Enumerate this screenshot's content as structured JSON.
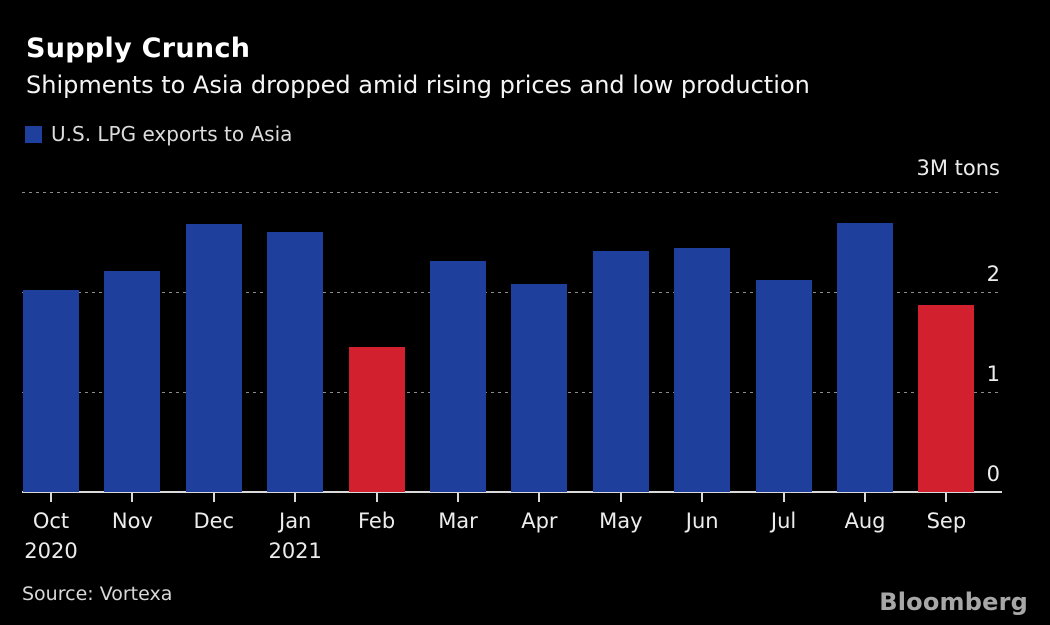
{
  "header": {
    "title": "Supply Crunch",
    "subtitle": "Shipments to Asia dropped amid rising prices and low production"
  },
  "legend": {
    "label": "U.S. LPG exports to Asia",
    "swatch_color": "#1e3f9c"
  },
  "footer": {
    "source": "Source: Vortexa",
    "brand": "Bloomberg"
  },
  "chart_data": {
    "type": "bar",
    "title": "Supply Crunch",
    "subtitle": "Shipments to Asia dropped amid rising prices and low production",
    "series_name": "U.S. LPG exports to Asia",
    "unit_label": "3M tons",
    "ylabel": "Million tons",
    "ylim": [
      0,
      3
    ],
    "yticks": [
      0,
      1,
      2
    ],
    "grid": "dashed-horizontal",
    "legend_position": "top-left",
    "categories": [
      "Oct",
      "Nov",
      "Dec",
      "Jan",
      "Feb",
      "Mar",
      "Apr",
      "May",
      "Jun",
      "Jul",
      "Aug",
      "Sep"
    ],
    "year_labels": [
      {
        "index": 0,
        "year": "2020"
      },
      {
        "index": 3,
        "year": "2021"
      }
    ],
    "values": [
      2.02,
      2.21,
      2.68,
      2.6,
      1.45,
      2.31,
      2.08,
      2.41,
      2.44,
      2.12,
      2.69,
      1.87
    ],
    "bar_colors": [
      "blue",
      "blue",
      "blue",
      "blue",
      "red",
      "blue",
      "blue",
      "blue",
      "blue",
      "blue",
      "blue",
      "red"
    ],
    "colors": {
      "blue": "#1e3f9c",
      "red": "#d3202f",
      "background": "#000000",
      "grid": "#8c8c8c",
      "axis": "#d9d9d9",
      "text": "#ececec"
    }
  }
}
